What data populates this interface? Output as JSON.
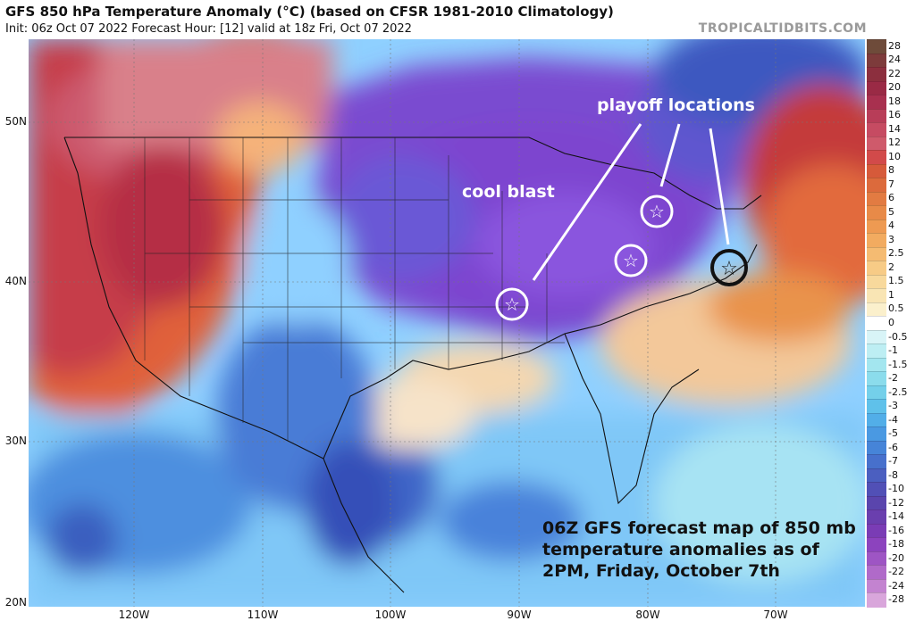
{
  "header": {
    "title": "GFS 850 hPa Temperature Anomaly (°C) (based on CFSR 1981-2010 Climatology)",
    "subtitle": "Init: 06z Oct 07 2022   Forecast Hour: [12]   valid at 18z Fri, Oct 07 2022",
    "brand": "TROPICALTIDBITS.COM"
  },
  "axes": {
    "lat_labels": [
      "50N",
      "40N",
      "30N",
      "20N"
    ],
    "lon_labels": [
      "120W",
      "110W",
      "100W",
      "90W",
      "80W",
      "70W"
    ]
  },
  "legend": {
    "values": [
      "28",
      "24",
      "22",
      "20",
      "18",
      "16",
      "14",
      "12",
      "10",
      "8",
      "7",
      "6",
      "5",
      "4",
      "3",
      "2.5",
      "2",
      "1.5",
      "1",
      "0.5",
      "0",
      "-0.5",
      "-1",
      "-1.5",
      "-2",
      "-2.5",
      "-3",
      "-4",
      "-5",
      "-6",
      "-7",
      "-8",
      "-10",
      "-12",
      "-14",
      "-16",
      "-18",
      "-20",
      "-22",
      "-24",
      "-28"
    ],
    "colors": [
      "#6e4b3a",
      "#7d3b3b",
      "#8c2f3e",
      "#9a2a45",
      "#a8304f",
      "#b83d58",
      "#c64b62",
      "#cf5a6b",
      "#d24a4a",
      "#d65a3a",
      "#dc6a3c",
      "#e27b42",
      "#e88a48",
      "#ee9a52",
      "#f2ab60",
      "#f5bb72",
      "#f7cb86",
      "#f8d99c",
      "#f9e5b4",
      "#fbf0cc",
      "#ffffff",
      "#d8f4f7",
      "#bdeef3",
      "#a3e6ef",
      "#8bdcec",
      "#74d0ea",
      "#5fc1ea",
      "#52aee8",
      "#4a99e2",
      "#4684d8",
      "#4770cc",
      "#4b5fc0",
      "#5150b6",
      "#5a45ad",
      "#6a3fae",
      "#7a3cb5",
      "#8c43be",
      "#9e55c4",
      "#b06ac9",
      "#c383d0",
      "#d9a6db"
    ]
  },
  "annotations": {
    "playoff": "playoff locations",
    "cool": "cool blast",
    "caption_lines": [
      "06Z GFS forecast map of 850 mb",
      "temperature anomalies as of",
      "2PM, Friday, October 7th"
    ]
  },
  "markers": [
    {
      "name": "st-louis",
      "style": "white"
    },
    {
      "name": "cleveland",
      "style": "white"
    },
    {
      "name": "toronto",
      "style": "white"
    },
    {
      "name": "new-york",
      "style": "black"
    }
  ]
}
